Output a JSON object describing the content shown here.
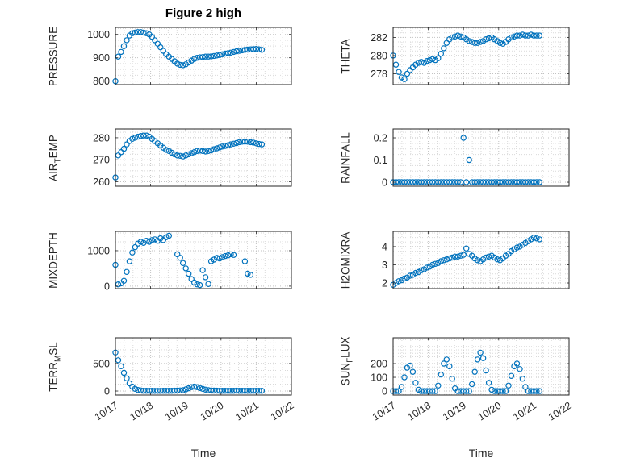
{
  "chart_data": {
    "type": "scatter",
    "title": "Figure 2 high",
    "xlabel": "Time",
    "marker": "o",
    "marker_color": "#0072BD",
    "grid": true,
    "minor_grid": true,
    "x_axis": {
      "lim": [
        0,
        5
      ],
      "ticks": [
        0,
        1,
        2,
        3,
        4,
        5
      ],
      "tick_labels": [
        "10/17",
        "10/18",
        "10/19",
        "10/20",
        "10/21",
        "10/22"
      ]
    },
    "subplots": [
      {
        "key": "pressure",
        "grid_col": 0,
        "grid_row": 0,
        "ylabel": {
          "pre": "PRESSURE",
          "sub": "",
          "post": ""
        },
        "ylim": [
          785,
          1030
        ],
        "yticks": [
          800,
          900,
          1000
        ],
        "x_start": 0,
        "x_step": 0.08,
        "y": [
          800,
          905,
          925,
          950,
          975,
          995,
          1005,
          1008,
          1010,
          1010,
          1008,
          1005,
          1000,
          990,
          975,
          960,
          945,
          930,
          915,
          905,
          895,
          885,
          875,
          870,
          868,
          872,
          880,
          888,
          895,
          900,
          902,
          903,
          905,
          905,
          906,
          908,
          910,
          912,
          915,
          918,
          920,
          922,
          925,
          928,
          930,
          932,
          934,
          935,
          936,
          937,
          938,
          936,
          934
        ]
      },
      {
        "key": "airtemp",
        "grid_col": 0,
        "grid_row": 1,
        "ylabel": {
          "pre": "AIR",
          "sub": "T",
          "post": "EMP"
        },
        "ylim": [
          258,
          284
        ],
        "yticks": [
          260,
          270,
          280
        ],
        "x_start": 0,
        "x_step": 0.08,
        "y": [
          262,
          272,
          273.5,
          275,
          277,
          278.5,
          279.5,
          280,
          280.5,
          280.8,
          281,
          281,
          280.5,
          279.5,
          278.5,
          277.5,
          276.5,
          275.5,
          274.5,
          274,
          273.2,
          272.5,
          272,
          271.8,
          271.5,
          272,
          272.5,
          273,
          273.5,
          274,
          274.2,
          274,
          273.8,
          274,
          274.3,
          274.8,
          275.2,
          275.6,
          276,
          276.3,
          276.6,
          277,
          277.3,
          277.6,
          278,
          278.2,
          278.3,
          278.2,
          278,
          277.8,
          277.5,
          277.2,
          277
        ]
      },
      {
        "key": "mixdepth",
        "grid_col": 0,
        "grid_row": 2,
        "ylabel": {
          "pre": "MIXDEPTH",
          "sub": "",
          "post": ""
        },
        "ylim": [
          -70,
          1545
        ],
        "yticks": [
          0,
          1000
        ],
        "x_start": 0,
        "x_step": 0.08,
        "y": [
          600,
          50,
          80,
          150,
          400,
          700,
          950,
          1100,
          1200,
          1250,
          1220,
          1280,
          1250,
          1300,
          1320,
          1280,
          1350,
          1300,
          1380,
          1420,
          null,
          null,
          900,
          800,
          650,
          500,
          350,
          200,
          100,
          50,
          30,
          450,
          250,
          60,
          700,
          750,
          800,
          780,
          820,
          850,
          870,
          900,
          880,
          null,
          null,
          null,
          700,
          350,
          320,
          null,
          null,
          null,
          null
        ]
      },
      {
        "key": "terrmsl",
        "grid_col": 0,
        "grid_row": 3,
        "ylabel": {
          "pre": "TERR",
          "sub": "M",
          "post": "SL"
        },
        "ylim": [
          -73,
          968
        ],
        "yticks": [
          0,
          500
        ],
        "x_start": 0,
        "x_step": 0.08,
        "y": [
          700,
          560,
          450,
          330,
          230,
          140,
          80,
          40,
          20,
          10,
          5,
          5,
          4,
          4,
          3,
          3,
          3,
          4,
          4,
          5,
          5,
          6,
          8,
          10,
          15,
          30,
          50,
          70,
          80,
          70,
          55,
          40,
          25,
          15,
          10,
          8,
          6,
          5,
          5,
          4,
          4,
          5,
          5,
          6,
          5,
          4,
          4,
          5,
          5,
          4,
          4,
          5,
          5
        ]
      },
      {
        "key": "theta",
        "grid_col": 1,
        "grid_row": 0,
        "ylabel": {
          "pre": "THETA",
          "sub": "",
          "post": ""
        },
        "ylim": [
          276.8,
          283.1
        ],
        "yticks": [
          278,
          280,
          282
        ],
        "x_start": 0,
        "x_step": 0.08,
        "y": [
          280,
          279,
          278.2,
          277.6,
          277.4,
          278,
          278.4,
          278.7,
          279,
          279.2,
          279.3,
          279.2,
          279.4,
          279.5,
          279.6,
          279.5,
          279.7,
          280.2,
          280.8,
          281.4,
          281.8,
          282,
          282.1,
          282.2,
          282.1,
          282,
          281.8,
          281.6,
          281.5,
          281.4,
          281.4,
          281.5,
          281.6,
          281.8,
          281.9,
          282,
          281.8,
          281.6,
          281.4,
          281.3,
          281.5,
          281.8,
          282,
          282.1,
          282.2,
          282.2,
          282.3,
          282.2,
          282.2,
          282.3,
          282.2,
          282.2,
          282.2
        ]
      },
      {
        "key": "rainfall",
        "grid_col": 1,
        "grid_row": 1,
        "ylabel": {
          "pre": "RAINFALL",
          "sub": "",
          "post": ""
        },
        "ylim": [
          -0.018,
          0.24
        ],
        "yticks": [
          0,
          0.1,
          0.2
        ],
        "x_start": 0,
        "x_step": 0.08,
        "y": [
          0,
          0,
          0,
          0,
          0,
          0,
          0,
          0,
          0,
          0,
          0,
          0,
          0,
          0,
          0,
          0,
          0,
          0,
          0,
          0,
          0,
          0,
          0,
          0,
          0,
          0.2,
          0,
          0.1,
          0,
          0,
          0,
          0,
          0,
          0,
          0,
          0,
          0,
          0,
          0,
          0,
          0,
          0,
          0,
          0,
          0,
          0,
          0,
          0,
          0,
          0,
          0,
          0,
          0
        ]
      },
      {
        "key": "h2omixra",
        "grid_col": 1,
        "grid_row": 2,
        "ylabel": {
          "pre": "H2OMIXRA",
          "sub": "",
          "post": ""
        },
        "ylim": [
          1.69,
          4.84
        ],
        "yticks": [
          2,
          3,
          4
        ],
        "x_start": 0,
        "x_step": 0.08,
        "y": [
          1.9,
          2,
          2.1,
          2.15,
          2.25,
          2.3,
          2.4,
          2.45,
          2.55,
          2.6,
          2.7,
          2.75,
          2.85,
          2.9,
          3,
          3.05,
          3.1,
          3.2,
          3.25,
          3.3,
          3.35,
          3.4,
          3.45,
          3.45,
          3.5,
          3.55,
          3.9,
          3.6,
          3.5,
          3.35,
          3.25,
          3.2,
          3.3,
          3.4,
          3.45,
          3.5,
          3.4,
          3.3,
          3.25,
          3.35,
          3.5,
          3.6,
          3.75,
          3.85,
          3.95,
          4,
          4.1,
          4.2,
          4.3,
          4.4,
          4.5,
          4.45,
          4.4
        ]
      },
      {
        "key": "sunflux",
        "grid_col": 1,
        "grid_row": 3,
        "ylabel": {
          "pre": "SUN",
          "sub": "F",
          "post": "LUX"
        },
        "ylim": [
          -29,
          388
        ],
        "yticks": [
          0,
          100,
          200
        ],
        "x_start": 0,
        "x_step": 0.08,
        "y": [
          0,
          0,
          0,
          30,
          100,
          170,
          185,
          140,
          60,
          10,
          0,
          0,
          0,
          0,
          0,
          0,
          40,
          120,
          200,
          230,
          180,
          90,
          20,
          0,
          0,
          0,
          0,
          0,
          50,
          140,
          230,
          280,
          240,
          150,
          60,
          10,
          0,
          0,
          0,
          0,
          0,
          40,
          110,
          180,
          200,
          160,
          90,
          30,
          0,
          0,
          0,
          0,
          0
        ]
      }
    ],
    "style": {
      "grid_color": "#c2c2c2",
      "minor_grid_color": "#d9d9d9",
      "axis_color": "#262626",
      "background": "#ffffff"
    }
  }
}
